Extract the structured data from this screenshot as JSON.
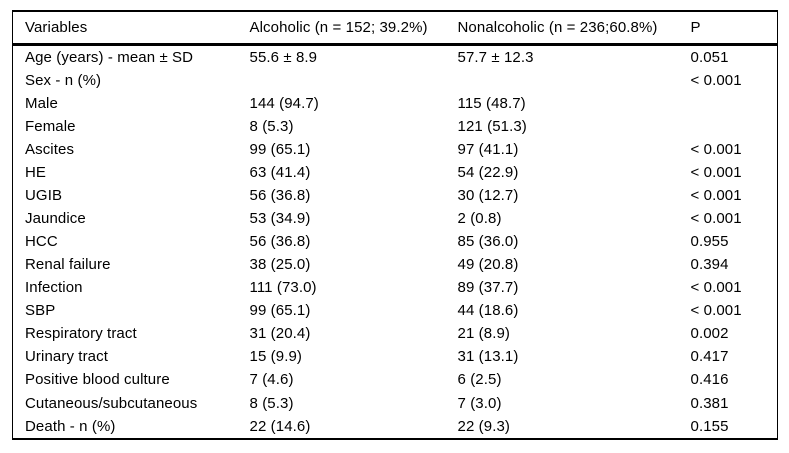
{
  "table": {
    "columns": [
      "Variables",
      "Alcoholic (n = 152; 39.2%)",
      "Nonalcoholic (n = 236;60.8%)",
      "P"
    ],
    "rows": [
      {
        "cells": [
          "Age (years) - mean ± SD",
          "55.6 ± 8.9",
          "57.7 ± 12.3",
          "0.051"
        ]
      },
      {
        "cells": [
          "Sex - n (%)",
          "",
          "",
          "< 0.001"
        ]
      },
      {
        "cells": [
          "Male",
          "144 (94.7)",
          "115 (48.7)",
          ""
        ]
      },
      {
        "cells": [
          "Female",
          "8 (5.3)",
          "121 (51.3)",
          ""
        ]
      },
      {
        "cells": [
          "Ascites",
          "99 (65.1)",
          "97 (41.1)",
          "< 0.001"
        ]
      },
      {
        "cells": [
          "HE",
          "63 (41.4)",
          "54 (22.9)",
          "< 0.001"
        ]
      },
      {
        "cells": [
          "UGIB",
          "56 (36.8)",
          "30 (12.7)",
          "< 0.001"
        ]
      },
      {
        "cells": [
          "Jaundice",
          "53 (34.9)",
          "2 (0.8)",
          "< 0.001"
        ]
      },
      {
        "cells": [
          "HCC",
          "56 (36.8)",
          "85 (36.0)",
          "0.955"
        ]
      },
      {
        "cells": [
          "Renal failure",
          "38 (25.0)",
          "49 (20.8)",
          "0.394"
        ]
      },
      {
        "cells": [
          "Infection",
          "111 (73.0)",
          "89 (37.7)",
          "< 0.001"
        ]
      },
      {
        "cells": [
          "SBP",
          "99 (65.1)",
          "44 (18.6)",
          "< 0.001"
        ]
      },
      {
        "cells": [
          "Respiratory tract",
          "31 (20.4)",
          "21 (8.9)",
          "0.002"
        ]
      },
      {
        "cells": [
          "Urinary tract",
          "15 (9.9)",
          "31 (13.1)",
          "0.417"
        ]
      },
      {
        "cells": [
          "Positive blood culture",
          "7 (4.6)",
          "6 (2.5)",
          "0.416"
        ]
      },
      {
        "cells": [
          "Cutaneous/subcutaneous",
          "8 (5.3)",
          "7 (3.0)",
          "0.381"
        ]
      },
      {
        "cells": [
          "Death - n (%)",
          "22 (14.6)",
          "22 (9.3)",
          "0.155"
        ]
      }
    ],
    "colors": {
      "text": "#000000",
      "border": "#000000",
      "background": "#ffffff"
    }
  }
}
